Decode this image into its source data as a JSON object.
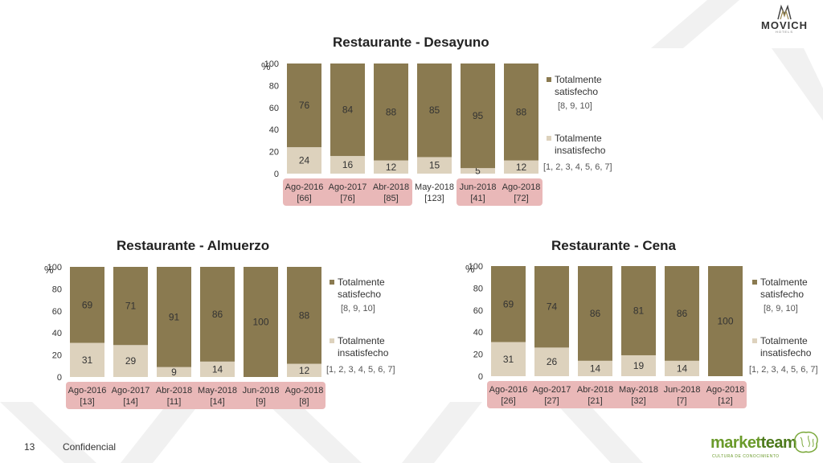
{
  "brand": {
    "name": "MOVICH",
    "sub": "HOTELS"
  },
  "footer": {
    "page": "13",
    "confidential": "Confidencial"
  },
  "partner": {
    "name_part1": "market",
    "name_part2": "team",
    "tagline": "CULTURA DE CONOCIMIENTO"
  },
  "colors": {
    "satisfied": "#8a7a50",
    "unsatisfied": "#ddd2bd",
    "highlight": "#e9b8b8",
    "label": "#333333"
  },
  "legend": {
    "satisfied": "Totalmente satisfecho",
    "satisfied_range": "[8, 9, 10]",
    "unsatisfied": "Totalmente insatisfecho",
    "unsatisfied_range": "[1, 2, 3, 4, 5, 6, 7]"
  },
  "chart_data": [
    {
      "type": "bar",
      "stacked": true,
      "title": "Restaurante - Desayuno",
      "ylabel": "%",
      "ylim": [
        0,
        100
      ],
      "yticks": [
        0,
        20,
        40,
        60,
        80,
        100
      ],
      "categories": [
        "Ago-2016",
        "Ago-2017",
        "Abr-2018",
        "May-2018",
        "Jun-2018",
        "Ago-2018"
      ],
      "counts": [
        "[66]",
        "[76]",
        "[85]",
        "[123]",
        "[41]",
        "[72]"
      ],
      "highlighted": [
        true,
        true,
        true,
        false,
        true,
        true
      ],
      "series": [
        {
          "name": "Totalmente insatisfecho",
          "values": [
            24,
            16,
            12,
            15,
            5,
            12
          ]
        },
        {
          "name": "Totalmente satisfecho",
          "values": [
            76,
            84,
            88,
            85,
            95,
            88
          ]
        }
      ]
    },
    {
      "type": "bar",
      "stacked": true,
      "title": "Restaurante - Almuerzo",
      "ylabel": "%",
      "ylim": [
        0,
        100
      ],
      "yticks": [
        0,
        20,
        40,
        60,
        80,
        100
      ],
      "categories": [
        "Ago-2016",
        "Ago-2017",
        "Abr-2018",
        "May-2018",
        "Jun-2018",
        "Ago-2018"
      ],
      "counts": [
        "[13]",
        "[14]",
        "[11]",
        "[14]",
        "[9]",
        "[8]"
      ],
      "highlighted": [
        true,
        true,
        true,
        true,
        true,
        true
      ],
      "series": [
        {
          "name": "Totalmente insatisfecho",
          "values": [
            31,
            29,
            9,
            14,
            0,
            12
          ]
        },
        {
          "name": "Totalmente satisfecho",
          "values": [
            69,
            71,
            91,
            86,
            100,
            88
          ]
        }
      ]
    },
    {
      "type": "bar",
      "stacked": true,
      "title": "Restaurante - Cena",
      "ylabel": "%",
      "ylim": [
        0,
        100
      ],
      "yticks": [
        0,
        20,
        40,
        60,
        80,
        100
      ],
      "categories": [
        "Ago-2016",
        "Ago-2017",
        "Abr-2018",
        "May-2018",
        "Jun-2018",
        "Ago-2018"
      ],
      "counts": [
        "[26]",
        "[27]",
        "[21]",
        "[32]",
        "[7]",
        "[12]"
      ],
      "highlighted": [
        true,
        true,
        true,
        true,
        true,
        true
      ],
      "series": [
        {
          "name": "Totalmente insatisfecho",
          "values": [
            31,
            26,
            14,
            19,
            14,
            0
          ]
        },
        {
          "name": "Totalmente satisfecho",
          "values": [
            69,
            74,
            86,
            81,
            86,
            100
          ]
        }
      ]
    }
  ]
}
